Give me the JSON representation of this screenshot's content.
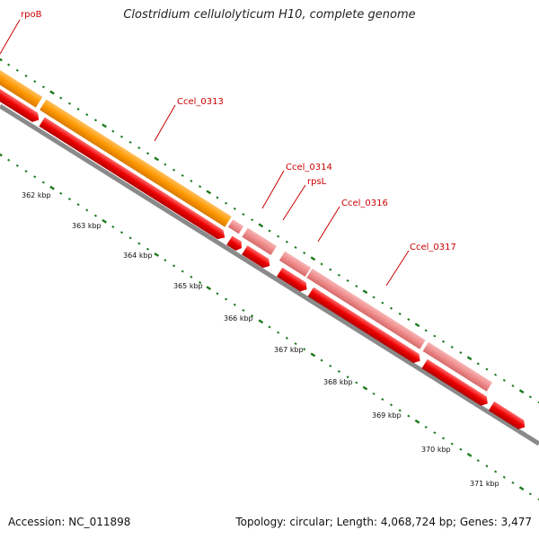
{
  "title": "Clostridium cellulolyticum H10, complete genome",
  "footer": {
    "accession": "Accession: NC_011898",
    "summary": "Topology: circular; Length: 4,068,724 bp; Genes: 3,477"
  },
  "gene_labels": [
    "rpoB",
    "Ccel_0313",
    "Ccel_0314",
    "rpsL",
    "Ccel_0316",
    "Ccel_0317"
  ],
  "tick_labels": [
    "362 kbp",
    "363 kbp",
    "364 kbp",
    "365 kbp",
    "366 kbp",
    "367 kbp",
    "368 kbp",
    "369 kbp",
    "370 kbp",
    "371 kbp"
  ],
  "colors": {
    "orange_gene": "#ff9900",
    "red_gene": "#ee0000",
    "pink_gene": "#f08c8c",
    "backbone": "#8a8a8a",
    "tick": "#1a7a1a",
    "label": "#cc0000"
  }
}
